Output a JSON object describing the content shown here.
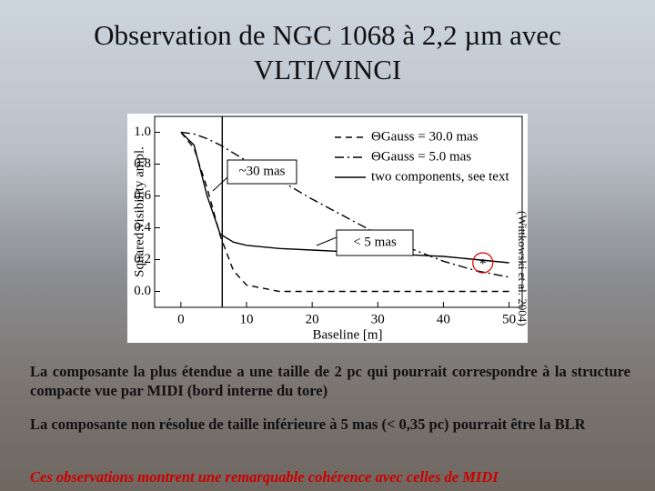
{
  "title": "Observation de NGC 1068 à 2,2 µm avec VLTI/VINCI",
  "citation": "(Wittkowski et al. 2004)",
  "paragraphs": [
    "La composante la plus étendue a une taille de 2 pc qui pourrait correspondre à la structure compacte vue par MIDI (bord interne du tore)",
    "La composante non résolue de taille inférieure à 5 mas (< 0,35 pc) pourrait être la BLR",
    "Ces observations montrent une remarquable cohérence avec celles de MIDI"
  ],
  "chart_data": {
    "type": "line",
    "x_label": "Baseline [m]",
    "y_label": "Squared visibility ampl.",
    "x": [
      0,
      2,
      4,
      6,
      8,
      10,
      15,
      20,
      25,
      30,
      35,
      40,
      45,
      50
    ],
    "series": [
      {
        "name": "ΘGauss = 30.0 mas",
        "color": "#000000",
        "dash": "7,5",
        "values": [
          1,
          0.9,
          0.65,
          0.35,
          0.13,
          0.04,
          0,
          0,
          0,
          0,
          0,
          0,
          0,
          0
        ]
      },
      {
        "name": "ΘGauss = 5.0 mas",
        "color": "#000000",
        "dash": "10,4,2,4",
        "values": [
          1,
          0.99,
          0.96,
          0.92,
          0.87,
          0.82,
          0.7,
          0.58,
          0.47,
          0.36,
          0.27,
          0.19,
          0.13,
          0.09
        ]
      },
      {
        "name": "two components, see text",
        "color": "#000000",
        "dash": "none",
        "values": [
          1,
          0.92,
          0.6,
          0.36,
          0.31,
          0.29,
          0.27,
          0.26,
          0.25,
          0.24,
          0.23,
          0.22,
          0.2,
          0.18
        ]
      }
    ],
    "vertical_line_x": 6.3,
    "observation": {
      "x": 46,
      "y": 0.18
    },
    "annotations": [
      "~30 mas",
      "< 5 mas"
    ],
    "xlim": [
      -4,
      52
    ],
    "ylim": [
      -0.1,
      1.1
    ],
    "xticks": [
      0,
      10,
      20,
      30,
      40,
      50
    ],
    "yticks": [
      {
        "value": 0,
        "label": "0.0"
      },
      0.2,
      0.4,
      0.6,
      0.8,
      {
        "value": 1,
        "label": "1.0"
      }
    ]
  }
}
